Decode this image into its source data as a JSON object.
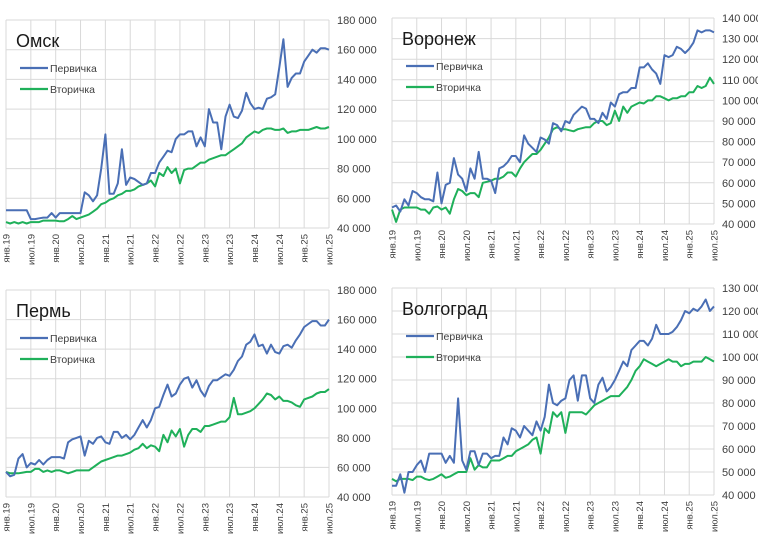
{
  "chart_data": [
    {
      "type": "line",
      "title": "Омск",
      "ylim": [
        40000,
        180000
      ],
      "y_tick_labels": [
        "40 000",
        "60 000",
        "80 000",
        "100 000",
        "120 000",
        "140 000",
        "160 000",
        "180 000"
      ],
      "x_tick_labels": [
        "янв.19",
        "июл.19",
        "янв.20",
        "июл.20",
        "янв.21",
        "июл.21",
        "янв.22",
        "июл.22",
        "янв.23",
        "июл.23",
        "янв.24",
        "июл.24",
        "янв.25",
        "июл.25"
      ],
      "legend_position": "top-left",
      "grid": true,
      "series": [
        {
          "name": "Первичка",
          "color": "#4a6fb5",
          "values": [
            52000,
            52000,
            52000,
            52000,
            52000,
            52000,
            46000,
            46000,
            46500,
            47000,
            47000,
            50000,
            47000,
            50000,
            50000,
            50000,
            50000,
            50000,
            50000,
            64000,
            62000,
            58000,
            62000,
            80000,
            103000,
            63000,
            63000,
            70000,
            93000,
            69000,
            74000,
            73000,
            71000,
            69000,
            70000,
            77000,
            77000,
            84000,
            88000,
            92000,
            91000,
            100000,
            103000,
            103000,
            105000,
            105000,
            95000,
            101000,
            95000,
            120000,
            111000,
            111000,
            93000,
            115000,
            123000,
            115000,
            114000,
            119000,
            131000,
            124000,
            120000,
            121000,
            120000,
            127000,
            128000,
            130000,
            148000,
            167000,
            135000,
            141000,
            144000,
            144000,
            152000,
            156000,
            160000,
            158000,
            161000,
            161000,
            160000
          ]
        },
        {
          "name": "Вторичка",
          "color": "#1fb05a",
          "values": [
            44000,
            43000,
            44000,
            43000,
            44000,
            43000,
            44000,
            44000,
            44000,
            45000,
            45000,
            45000,
            45000,
            44500,
            44500,
            46000,
            48000,
            46000,
            47000,
            48000,
            49000,
            51000,
            53000,
            56000,
            57000,
            59000,
            60000,
            62000,
            63000,
            65000,
            65000,
            66000,
            68000,
            69000,
            70000,
            72000,
            68000,
            77000,
            75000,
            81000,
            77000,
            80000,
            70000,
            79000,
            80000,
            80000,
            82000,
            84000,
            84000,
            86000,
            87000,
            88000,
            89000,
            89000,
            91000,
            93000,
            95000,
            97000,
            101000,
            103000,
            105000,
            104000,
            106000,
            107000,
            107000,
            106000,
            106000,
            107000,
            104000,
            105000,
            105000,
            106000,
            106000,
            106000,
            107000,
            108000,
            107000,
            107000,
            108000
          ]
        }
      ]
    },
    {
      "type": "line",
      "title": "Воронеж",
      "ylim": [
        40000,
        140000
      ],
      "y_tick_labels": [
        "40 000",
        "50 000",
        "60 000",
        "70 000",
        "80 000",
        "90 000",
        "100 000",
        "110 000",
        "120 000",
        "130 000",
        "140 000"
      ],
      "x_tick_labels": [
        "янв.19",
        "июл.19",
        "янв.20",
        "июл.20",
        "янв.21",
        "июл.21",
        "янв.22",
        "июл.22",
        "янв.23",
        "июл.23",
        "янв.24",
        "июл.24",
        "янв.25",
        "июл.25"
      ],
      "legend_position": "top-left",
      "grid": true,
      "series": [
        {
          "name": "Первичка",
          "color": "#4a6fb5",
          "values": [
            48000,
            49000,
            46000,
            52000,
            49000,
            56000,
            55000,
            53000,
            52000,
            52000,
            51000,
            65000,
            50000,
            59000,
            60000,
            72000,
            64000,
            62000,
            56000,
            67000,
            62000,
            75000,
            62000,
            62000,
            61000,
            55000,
            67000,
            68000,
            70000,
            73000,
            73000,
            70000,
            83000,
            79000,
            77000,
            75000,
            82000,
            81000,
            79000,
            89000,
            88000,
            85000,
            90000,
            89000,
            93000,
            95000,
            97000,
            96000,
            91000,
            91000,
            89000,
            94000,
            91000,
            99000,
            97000,
            103000,
            104000,
            104000,
            106000,
            106000,
            116000,
            116000,
            118000,
            115000,
            113000,
            108000,
            122000,
            121000,
            122000,
            126000,
            125000,
            123000,
            125000,
            128000,
            134000,
            133000,
            134000,
            134000,
            133000
          ]
        },
        {
          "name": "Вторичка",
          "color": "#1fb05a",
          "values": [
            47000,
            41000,
            47000,
            48000,
            48000,
            48000,
            48000,
            47000,
            47000,
            45000,
            48000,
            48500,
            47000,
            48000,
            45000,
            52000,
            57000,
            56000,
            54000,
            55000,
            55000,
            53000,
            60000,
            60500,
            61000,
            62000,
            62000,
            63000,
            65000,
            65000,
            63000,
            67000,
            70000,
            72000,
            74000,
            74000,
            76000,
            79000,
            82000,
            86000,
            87000,
            86000,
            86000,
            85500,
            85000,
            86000,
            86500,
            87000,
            87000,
            89000,
            90000,
            90000,
            88000,
            89000,
            95000,
            90000,
            97000,
            94000,
            97000,
            98000,
            99000,
            98500,
            100000,
            100000,
            102000,
            102000,
            101000,
            100000,
            101000,
            101000,
            102000,
            102000,
            104000,
            104000,
            107000,
            106000,
            107000,
            111000,
            108000
          ]
        }
      ]
    },
    {
      "type": "line",
      "title": "Пермь",
      "ylim": [
        40000,
        180000
      ],
      "y_tick_labels": [
        "40 000",
        "60 000",
        "80 000",
        "100 000",
        "120 000",
        "140 000",
        "160 000",
        "180 000"
      ],
      "x_tick_labels": [
        "янв.19",
        "июл.19",
        "янв.20",
        "июл.20",
        "янв.21",
        "июл.21",
        "янв.22",
        "июл.22",
        "янв.23",
        "июл.23",
        "янв.24",
        "июл.24",
        "янв.25",
        "июл.25"
      ],
      "legend_position": "top-left",
      "grid": true,
      "series": [
        {
          "name": "Первичка",
          "color": "#4a6fb5",
          "values": [
            57000,
            54000,
            55000,
            66000,
            69000,
            60000,
            63000,
            62000,
            65000,
            62000,
            65000,
            67000,
            67000,
            67000,
            66000,
            77000,
            79000,
            80000,
            81000,
            68000,
            78000,
            76000,
            80000,
            81000,
            77000,
            76000,
            84000,
            84000,
            80000,
            82000,
            79000,
            82000,
            87000,
            92000,
            87000,
            92000,
            100000,
            101000,
            109000,
            116000,
            108000,
            110000,
            116000,
            120000,
            121000,
            114000,
            119000,
            112000,
            108000,
            115000,
            119000,
            119000,
            121000,
            123000,
            122000,
            126000,
            132000,
            135000,
            143000,
            145000,
            150000,
            142000,
            143000,
            137000,
            143000,
            138000,
            137000,
            142000,
            143000,
            141000,
            146000,
            150000,
            155000,
            157000,
            159000,
            159000,
            156000,
            156000,
            160000
          ]
        },
        {
          "name": "Вторичка",
          "color": "#1fb05a",
          "values": [
            57000,
            56000,
            56000,
            56000,
            56500,
            57000,
            57000,
            59000,
            59000,
            57000,
            58000,
            57000,
            58000,
            58000,
            57000,
            56000,
            57000,
            58000,
            58000,
            58000,
            58000,
            60000,
            62000,
            64000,
            65000,
            66000,
            67000,
            68000,
            68000,
            69000,
            70000,
            72000,
            73000,
            76000,
            73000,
            75000,
            74000,
            71000,
            82000,
            77000,
            85000,
            81000,
            86000,
            74000,
            82000,
            86000,
            86000,
            84000,
            88000,
            88000,
            89000,
            90000,
            91000,
            91000,
            94000,
            107000,
            96000,
            96000,
            97000,
            98000,
            100000,
            103000,
            106000,
            110000,
            109000,
            106000,
            108000,
            105000,
            105000,
            104000,
            102000,
            101000,
            106000,
            107000,
            108000,
            110000,
            111000,
            111000,
            113000
          ]
        }
      ]
    },
    {
      "type": "line",
      "title": "Волгоград",
      "ylim": [
        40000,
        130000
      ],
      "y_tick_labels": [
        "40 000",
        "50 000",
        "60 000",
        "70 000",
        "80 000",
        "90 000",
        "100 000",
        "110 000",
        "120 000",
        "130 000"
      ],
      "x_tick_labels": [
        "янв.19",
        "июл.19",
        "янв.20",
        "июл.20",
        "янв.21",
        "июл.21",
        "янв.22",
        "июл.22",
        "янв.23",
        "июл.23",
        "янв.24",
        "июл.24",
        "янв.25",
        "июл.25"
      ],
      "legend_position": "top-left",
      "grid": true,
      "series": [
        {
          "name": "Первичка",
          "color": "#4a6fb5",
          "values": [
            44000,
            44000,
            49000,
            41000,
            50000,
            50000,
            53000,
            55000,
            50000,
            58000,
            58000,
            58000,
            58000,
            54000,
            57000,
            54000,
            82000,
            55000,
            51000,
            59000,
            59000,
            53000,
            58000,
            58000,
            56000,
            57000,
            57000,
            65000,
            62000,
            69000,
            68000,
            65000,
            70000,
            68000,
            66000,
            72000,
            68000,
            74000,
            88000,
            80000,
            79000,
            81000,
            82000,
            90000,
            92000,
            81000,
            92000,
            92000,
            82000,
            80000,
            88000,
            91000,
            85000,
            87000,
            90000,
            94000,
            98000,
            96000,
            103000,
            105000,
            107000,
            107000,
            105000,
            108000,
            114000,
            110000,
            110000,
            110000,
            111000,
            113000,
            116000,
            120000,
            119000,
            121000,
            120000,
            122000,
            125000,
            120000,
            122000
          ]
        },
        {
          "name": "Вторичка",
          "color": "#1fb05a",
          "values": [
            47000,
            46000,
            47000,
            47000,
            47000,
            46500,
            48000,
            48000,
            47000,
            46500,
            47000,
            48000,
            49000,
            47500,
            48000,
            49000,
            50000,
            50000,
            50000,
            56000,
            51000,
            53000,
            52000,
            52000,
            55000,
            55000,
            55000,
            56000,
            57000,
            57000,
            59000,
            60000,
            61000,
            62000,
            64000,
            65000,
            58000,
            69000,
            67000,
            76000,
            74000,
            76000,
            67000,
            76000,
            76000,
            76000,
            76000,
            75000,
            77000,
            79000,
            80000,
            81000,
            82000,
            83000,
            83000,
            83000,
            85000,
            87000,
            90000,
            94000,
            96000,
            99000,
            98000,
            97000,
            96000,
            97000,
            98000,
            99000,
            98000,
            98000,
            96000,
            97000,
            97000,
            98000,
            98000,
            98000,
            100000,
            99000,
            98000
          ]
        }
      ]
    }
  ]
}
